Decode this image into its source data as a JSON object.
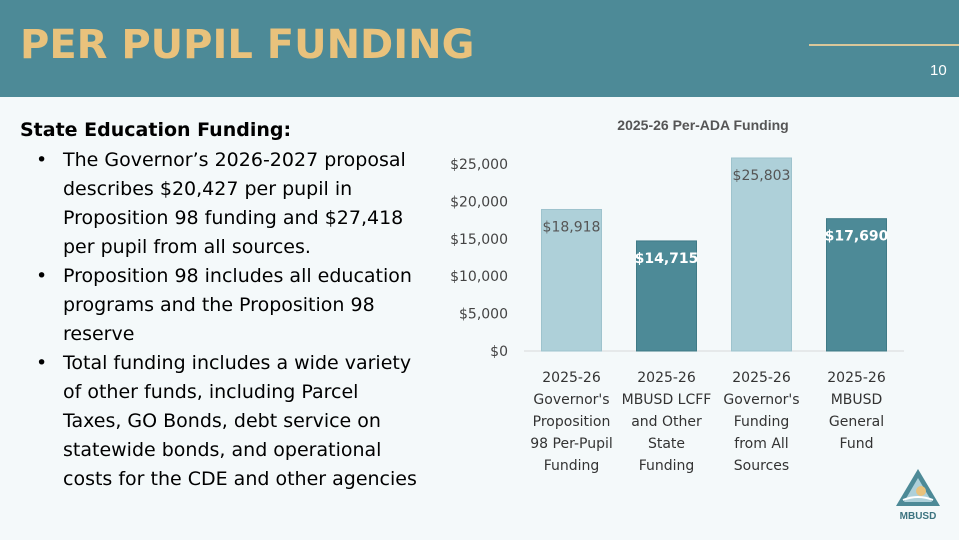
{
  "slide": {
    "title": "PER PUPIL FUNDING",
    "number": "10",
    "logo_text": "MBUSD"
  },
  "content": {
    "heading": "State Education Funding:",
    "bullets": [
      "The Governor’s 2026-2027 proposal describes $20,427 per pupil in Proposition 98 funding and $27,418 per pupil from all sources.",
      "Proposition 98 includes all education programs and the Proposition 98 reserve",
      "Total funding includes a wide variety of other funds, including Parcel Taxes, GO Bonds, debt service on statewide bonds, and operational costs for the CDE and other agencies"
    ]
  },
  "colors": {
    "header": "#4d8a97",
    "title": "#e9c27c",
    "bar_light": "#aed0d9",
    "bar_dark": "#4d8a97"
  },
  "chart_data": {
    "type": "bar",
    "title": "2025-26 Per-ADA Funding",
    "categories": [
      [
        "2025-26",
        "Governor's",
        "Proposition",
        "98 Per-Pupil",
        "Funding"
      ],
      [
        "2025-26",
        "MBUSD LCFF",
        "and Other",
        "State",
        "Funding"
      ],
      [
        "2025-26",
        "Governor's",
        "Funding",
        "from All",
        "Sources"
      ],
      [
        "2025-26",
        "MBUSD",
        "General",
        "Fund"
      ]
    ],
    "values": [
      18918,
      14715,
      25803,
      17690
    ],
    "value_labels": [
      "$18,918",
      "$14,715",
      "$25,803",
      "$17,690"
    ],
    "bar_styles": [
      "light",
      "dark",
      "light",
      "dark"
    ],
    "yticks": [
      0,
      5000,
      10000,
      15000,
      20000,
      25000
    ],
    "ytick_labels": [
      "$0",
      "$5,000",
      "$10,000",
      "$15,000",
      "$20,000",
      "$25,000"
    ],
    "ylim": [
      0,
      27000
    ],
    "xlabel": "",
    "ylabel": ""
  }
}
